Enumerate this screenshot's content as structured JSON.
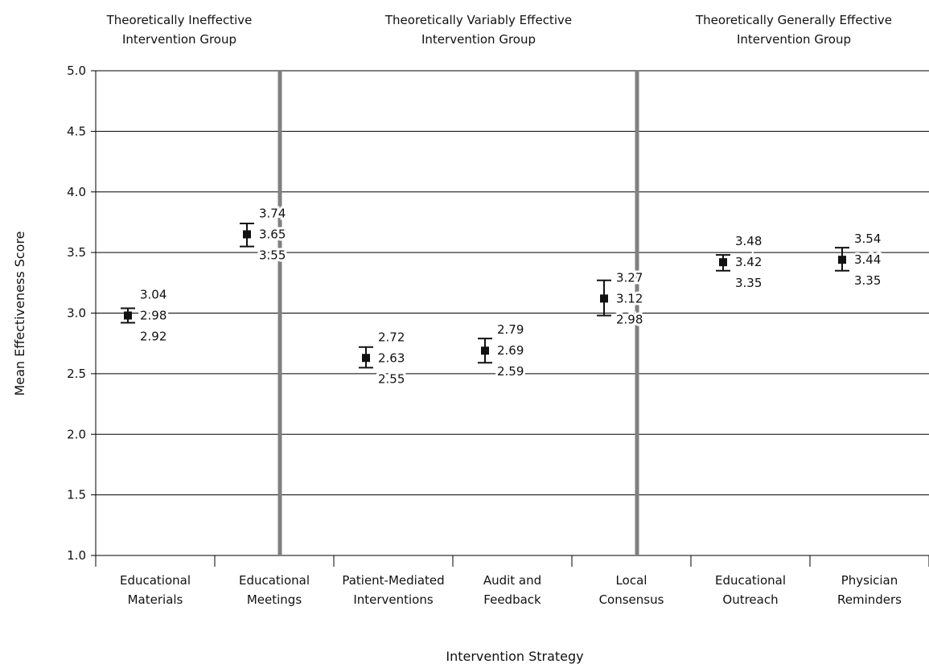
{
  "chart_data": {
    "type": "scatter",
    "xlabel": "Intervention Strategy",
    "ylabel": "Mean Effectiveness Score",
    "ylim": [
      1.0,
      5.0
    ],
    "yticks": [
      "1.0",
      "1.5",
      "2.0",
      "2.5",
      "3.0",
      "3.5",
      "4.0",
      "4.5",
      "5.0"
    ],
    "grid": "horizontal",
    "groups": [
      {
        "title_lines": [
          "Theoretically Ineffective",
          "Intervention Group"
        ]
      },
      {
        "title_lines": [
          "Theoretically Variably Effective",
          "Intervention Group"
        ]
      },
      {
        "title_lines": [
          "Theoretically Generally Effective",
          "Intervention Group"
        ]
      }
    ],
    "categories": [
      {
        "lines": [
          "Educational",
          "Materials"
        ],
        "mean": 2.98,
        "upper": 3.04,
        "lower": 2.92
      },
      {
        "lines": [
          "Educational",
          "Meetings"
        ],
        "mean": 3.65,
        "upper": 3.74,
        "lower": 3.55
      },
      {
        "lines": [
          "Patient-Mediated",
          "Interventions"
        ],
        "mean": 2.63,
        "upper": 2.72,
        "lower": 2.55
      },
      {
        "lines": [
          "Audit and",
          "Feedback"
        ],
        "mean": 2.69,
        "upper": 2.79,
        "lower": 2.59
      },
      {
        "lines": [
          "Local",
          "Consensus"
        ],
        "mean": 3.12,
        "upper": 3.27,
        "lower": 2.98
      },
      {
        "lines": [
          "Educational",
          "Outreach"
        ],
        "mean": 3.42,
        "upper": 3.48,
        "lower": 3.35
      },
      {
        "lines": [
          "Physician",
          "Reminders"
        ],
        "mean": 3.44,
        "upper": 3.54,
        "lower": 3.35
      }
    ],
    "value_labels": [
      [
        "3.04",
        "2.98",
        "2.92"
      ],
      [
        "3.74",
        "3.65",
        "3.55"
      ],
      [
        "2.72",
        "2.63",
        "2.55"
      ],
      [
        "2.79",
        "2.69",
        "2.59"
      ],
      [
        "3.27",
        "3.12",
        "2.98"
      ],
      [
        "3.48",
        "3.42",
        "3.35"
      ],
      [
        "3.54",
        "3.44",
        "3.35"
      ]
    ],
    "colors": {
      "grid": "#000000",
      "separator": "#808080",
      "marker": "#111111"
    }
  }
}
